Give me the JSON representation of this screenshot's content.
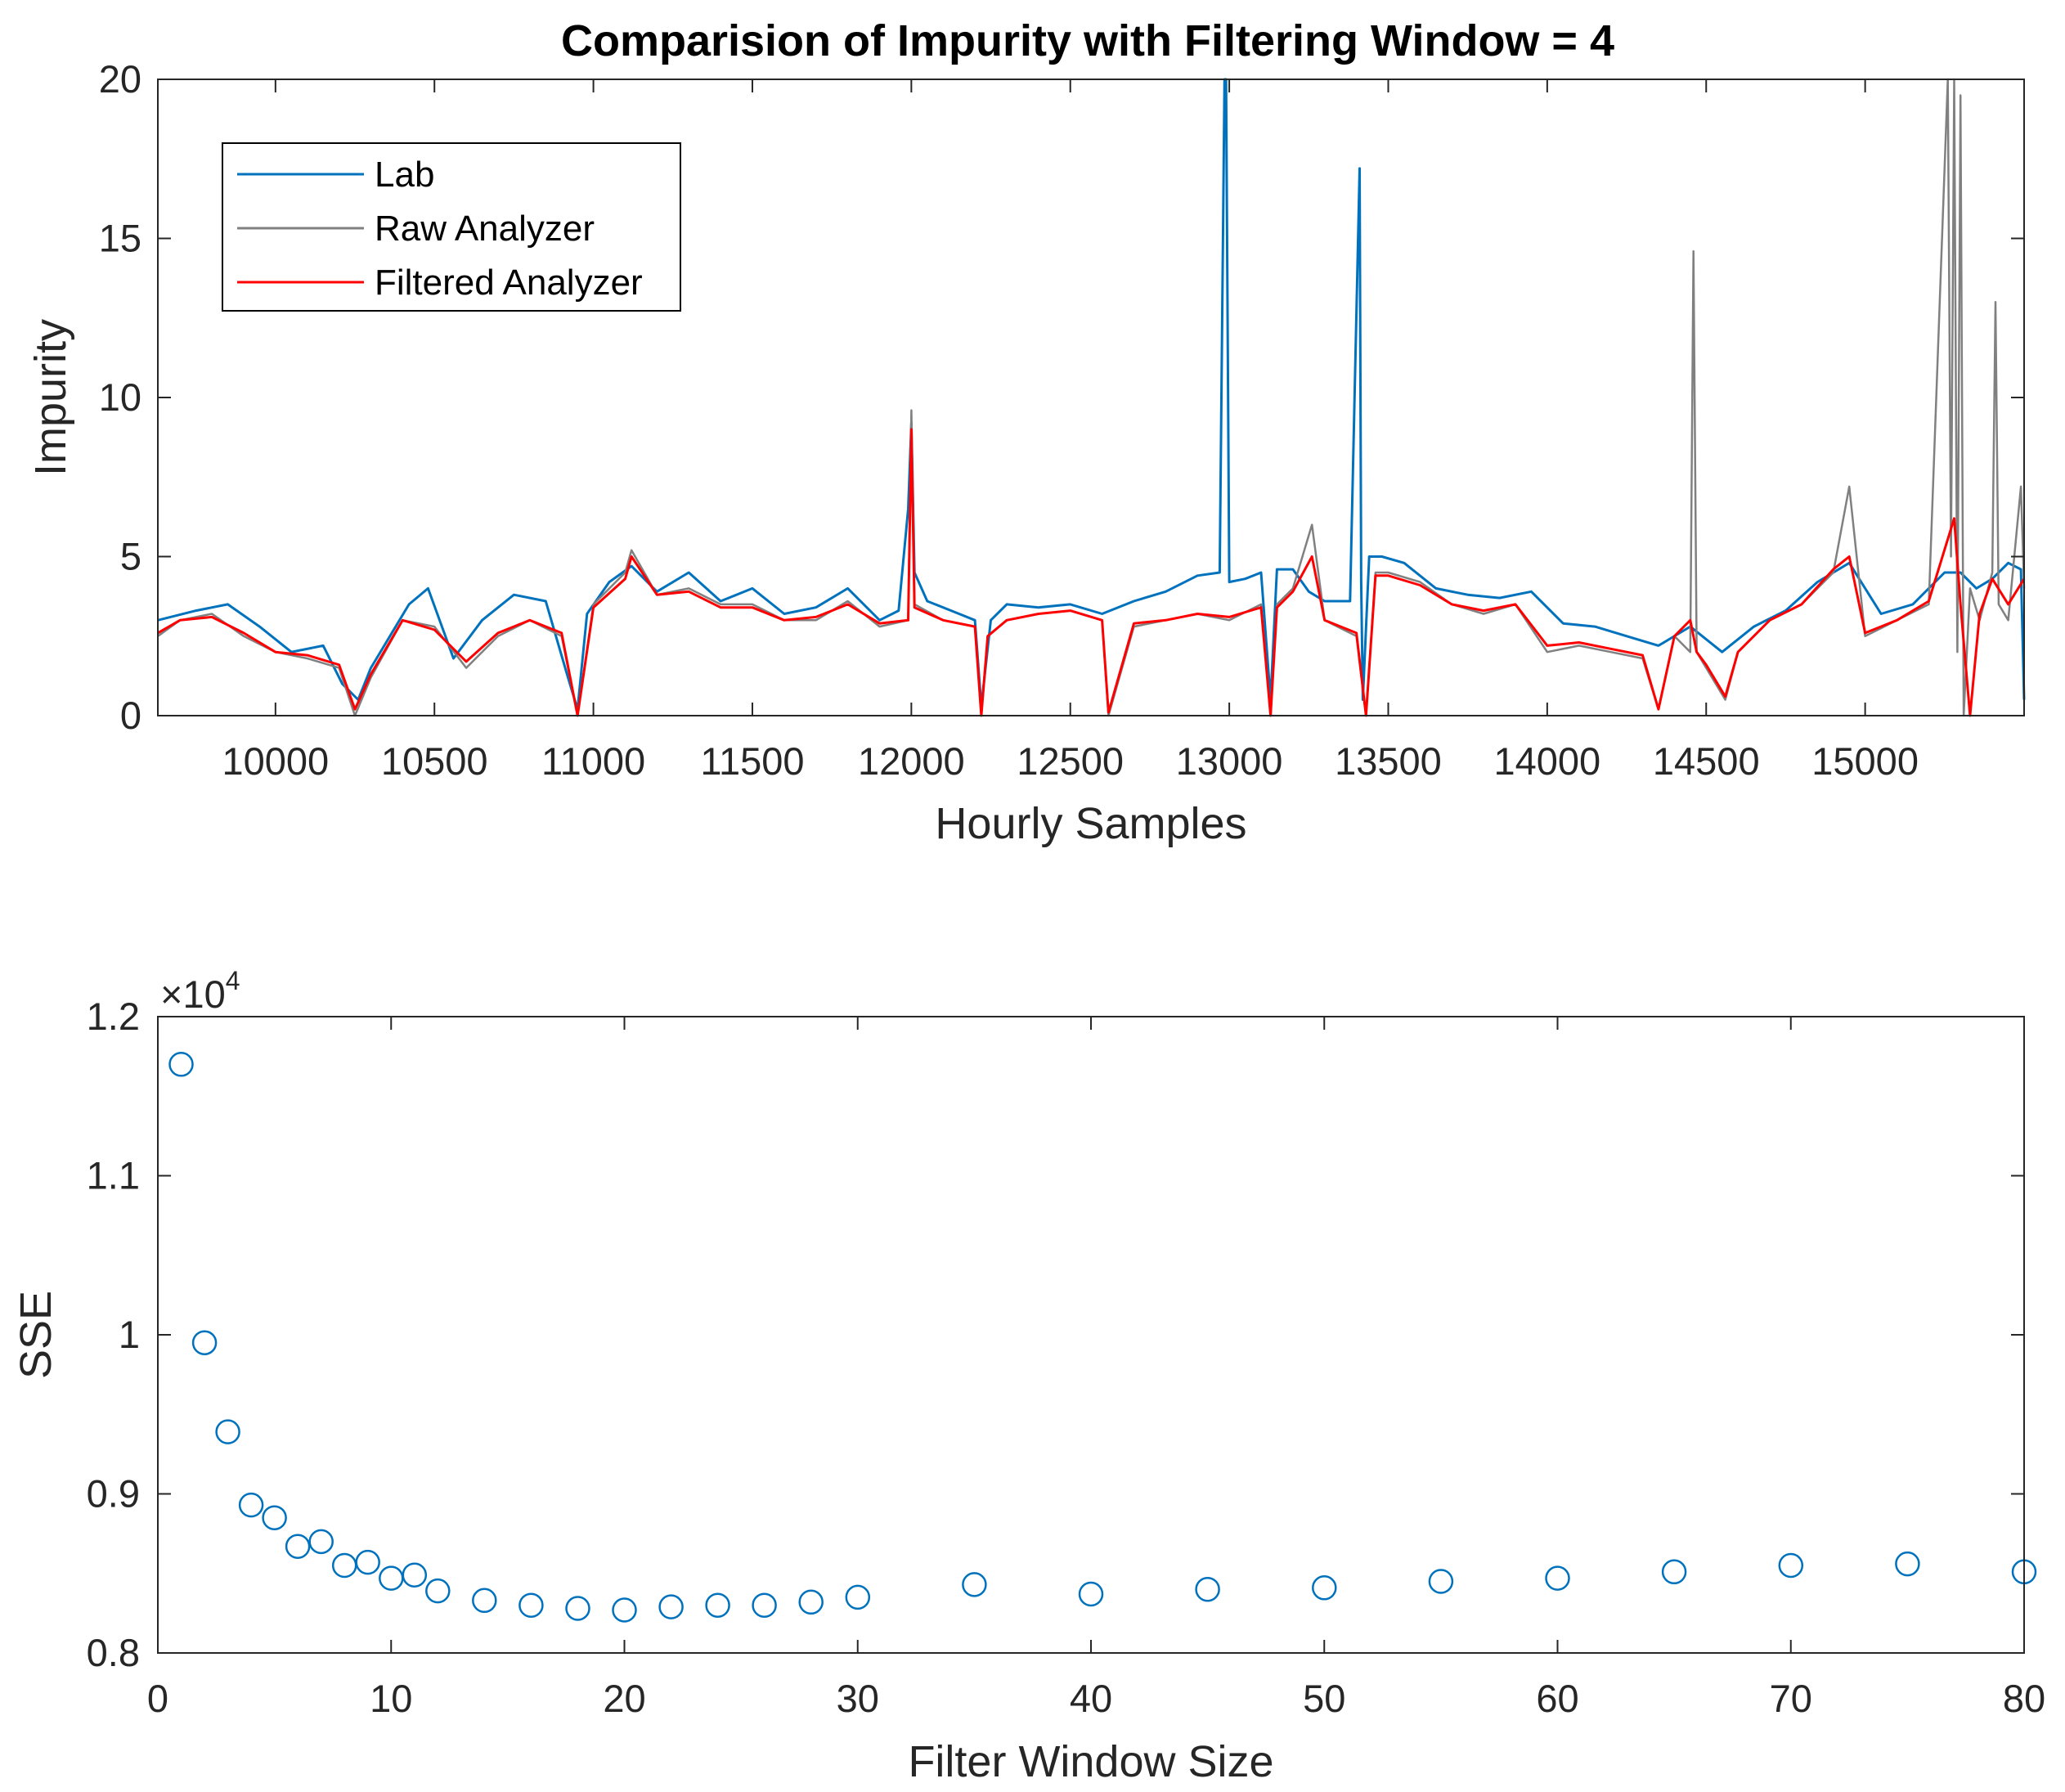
{
  "colors": {
    "lab": "#0072BD",
    "raw": "#808080",
    "filtered": "#FF0000",
    "scatter": "#0072BD",
    "axes": "#262626"
  },
  "chart_data": [
    {
      "type": "line",
      "title": "Comparision of Impurity with Filtering Window = 4",
      "xlabel": "Hourly Samples",
      "ylabel": "Impurity",
      "xlim": [
        9630,
        15500
      ],
      "ylim": [
        0,
        20
      ],
      "xticks": [
        10000,
        10500,
        11000,
        11500,
        12000,
        12500,
        13000,
        13500,
        14000,
        14500,
        15000
      ],
      "xtick_labels": [
        "10000",
        "10500",
        "11000",
        "11500",
        "12000",
        "12500",
        "13000",
        "13500",
        "14000",
        "14500",
        "15000"
      ],
      "yticks": [
        0,
        5,
        10,
        15,
        20
      ],
      "ytick_labels": [
        "0",
        "5",
        "10",
        "15",
        "20"
      ],
      "legend_position": "top-left",
      "series": [
        {
          "name": "Lab",
          "color_key": "lab",
          "x": [
            9630,
            9750,
            9850,
            9950,
            10050,
            10150,
            10210,
            10260,
            10300,
            10360,
            10420,
            10480,
            10560,
            10650,
            10750,
            10850,
            10920,
            10950,
            10980,
            11050,
            11120,
            11200,
            11300,
            11400,
            11500,
            11600,
            11700,
            11800,
            11900,
            11960,
            11990,
            12000,
            12010,
            12050,
            12150,
            12200,
            12220,
            12250,
            12300,
            12400,
            12500,
            12600,
            12700,
            12800,
            12900,
            12970,
            12985,
            12990,
            13000,
            13050,
            13100,
            13130,
            13150,
            13200,
            13250,
            13300,
            13380,
            13410,
            13415,
            13420,
            13440,
            13480,
            13550,
            13650,
            13750,
            13850,
            13950,
            14050,
            14150,
            14250,
            14350,
            14450,
            14550,
            14650,
            14750,
            14850,
            14950,
            15050,
            15150,
            15250,
            15300,
            15350,
            15400,
            15450,
            15490,
            15500
          ],
          "y": [
            3.0,
            3.3,
            3.5,
            2.8,
            2.0,
            2.2,
            1.0,
            0.5,
            1.5,
            2.5,
            3.5,
            4.0,
            1.8,
            3.0,
            3.8,
            3.6,
            1.2,
            0.2,
            3.2,
            4.2,
            4.7,
            3.9,
            4.5,
            3.6,
            4.0,
            3.2,
            3.4,
            4.0,
            3.0,
            3.3,
            6.5,
            9.2,
            4.5,
            3.6,
            3.2,
            3.0,
            0.3,
            3.0,
            3.5,
            3.4,
            3.5,
            3.2,
            3.6,
            3.9,
            4.4,
            4.5,
            20.0,
            20.0,
            4.2,
            4.3,
            4.5,
            0.5,
            4.6,
            4.6,
            3.9,
            3.6,
            3.6,
            17.2,
            4.2,
            0.5,
            5.0,
            5.0,
            4.8,
            4.0,
            3.8,
            3.7,
            3.9,
            2.9,
            2.8,
            2.5,
            2.2,
            2.8,
            2.0,
            2.8,
            3.3,
            4.2,
            4.8,
            3.2,
            3.5,
            4.5,
            4.5,
            4.0,
            4.3,
            4.8,
            4.6,
            0.5
          ]
        },
        {
          "name": "Raw Analyzer",
          "color_key": "raw",
          "x": [
            9630,
            9700,
            9800,
            9900,
            10000,
            10100,
            10200,
            10250,
            10300,
            10400,
            10500,
            10600,
            10700,
            10800,
            10900,
            10950,
            11000,
            11100,
            11120,
            11200,
            11300,
            11400,
            11500,
            11600,
            11700,
            11800,
            11900,
            11990,
            12000,
            12010,
            12100,
            12200,
            12220,
            12240,
            12300,
            12400,
            12500,
            12600,
            12620,
            12700,
            12800,
            12900,
            13000,
            13100,
            13130,
            13150,
            13200,
            13260,
            13300,
            13400,
            13430,
            13460,
            13500,
            13600,
            13700,
            13800,
            13900,
            14000,
            14100,
            14200,
            14300,
            14350,
            14400,
            14450,
            14460,
            14470,
            14500,
            14560,
            14600,
            14700,
            14800,
            14900,
            14950,
            15000,
            15100,
            15200,
            15260,
            15270,
            15280,
            15290,
            15300,
            15310,
            15330,
            15360,
            15400,
            15410,
            15420,
            15450,
            15490,
            15500
          ],
          "y": [
            2.5,
            3.0,
            3.2,
            2.5,
            2.0,
            1.8,
            1.5,
            0.0,
            1.2,
            3.0,
            2.8,
            1.5,
            2.5,
            3.0,
            2.5,
            0.0,
            3.5,
            4.5,
            5.2,
            3.8,
            4.0,
            3.5,
            3.5,
            3.0,
            3.0,
            3.6,
            2.8,
            3.0,
            9.6,
            3.5,
            3.0,
            2.8,
            0.0,
            2.5,
            3.0,
            3.2,
            3.3,
            3.0,
            0.0,
            2.8,
            3.0,
            3.2,
            3.0,
            3.5,
            0.0,
            3.5,
            4.0,
            6.0,
            3.0,
            2.5,
            0.0,
            4.5,
            4.5,
            4.2,
            3.5,
            3.2,
            3.5,
            2.0,
            2.2,
            2.0,
            1.8,
            0.2,
            2.5,
            2.0,
            14.6,
            2.0,
            1.5,
            0.5,
            2.0,
            3.0,
            3.5,
            4.5,
            7.2,
            2.5,
            3.0,
            3.5,
            20.0,
            5.0,
            20.0,
            2.0,
            19.5,
            0.0,
            4.0,
            3.0,
            4.5,
            13.0,
            3.5,
            3.0,
            7.2,
            4.0
          ]
        },
        {
          "name": "Filtered Analyzer",
          "color_key": "filtered",
          "x": [
            9630,
            9700,
            9800,
            9900,
            10000,
            10100,
            10200,
            10250,
            10300,
            10400,
            10500,
            10600,
            10700,
            10800,
            10900,
            10950,
            11000,
            11100,
            11120,
            11200,
            11300,
            11400,
            11500,
            11600,
            11700,
            11800,
            11900,
            11990,
            12000,
            12010,
            12100,
            12200,
            12220,
            12240,
            12300,
            12400,
            12500,
            12600,
            12620,
            12700,
            12800,
            12900,
            13000,
            13100,
            13130,
            13150,
            13200,
            13260,
            13300,
            13400,
            13430,
            13460,
            13500,
            13600,
            13700,
            13800,
            13900,
            14000,
            14100,
            14200,
            14300,
            14350,
            14400,
            14450,
            14470,
            14500,
            14560,
            14600,
            14700,
            14800,
            14900,
            14950,
            15000,
            15100,
            15200,
            15280,
            15300,
            15330,
            15360,
            15400,
            15450,
            15500
          ],
          "y": [
            2.6,
            3.0,
            3.1,
            2.6,
            2.0,
            1.9,
            1.6,
            0.2,
            1.3,
            3.0,
            2.7,
            1.7,
            2.6,
            3.0,
            2.6,
            0.0,
            3.4,
            4.3,
            5.0,
            3.8,
            3.9,
            3.4,
            3.4,
            3.0,
            3.1,
            3.5,
            2.9,
            3.0,
            9.0,
            3.4,
            3.0,
            2.8,
            0.0,
            2.5,
            3.0,
            3.2,
            3.3,
            3.0,
            0.1,
            2.9,
            3.0,
            3.2,
            3.1,
            3.4,
            0.0,
            3.4,
            3.9,
            5.0,
            3.0,
            2.6,
            0.0,
            4.4,
            4.4,
            4.1,
            3.5,
            3.3,
            3.5,
            2.2,
            2.3,
            2.1,
            1.9,
            0.2,
            2.5,
            3.0,
            2.0,
            1.6,
            0.6,
            2.0,
            3.0,
            3.5,
            4.6,
            5.0,
            2.6,
            3.0,
            3.6,
            6.2,
            3.5,
            0.0,
            3.2,
            4.3,
            3.5,
            4.3
          ]
        }
      ]
    },
    {
      "type": "scatter",
      "title": "",
      "xlabel": "Filter Window Size",
      "ylabel": "SSE",
      "exponent_label": "×10",
      "exponent_power": "4",
      "xlim": [
        0,
        80
      ],
      "ylim": [
        0.8,
        1.2
      ],
      "xticks": [
        0,
        10,
        20,
        30,
        40,
        50,
        60,
        70,
        80
      ],
      "xtick_labels": [
        "0",
        "10",
        "20",
        "30",
        "40",
        "50",
        "60",
        "70",
        "80"
      ],
      "yticks": [
        0.8,
        0.9,
        1.0,
        1.1,
        1.2
      ],
      "ytick_labels": [
        "0.8",
        "0.9",
        "1",
        "1.1",
        "1.2"
      ],
      "series": [
        {
          "name": "SSE",
          "color_key": "scatter",
          "x": [
            1,
            2,
            3,
            4,
            5,
            6,
            7,
            8,
            9,
            10,
            11,
            12,
            14,
            16,
            18,
            20,
            22,
            24,
            26,
            28,
            30,
            35,
            40,
            45,
            50,
            55,
            60,
            65,
            70,
            75,
            80
          ],
          "y": [
            1.17,
            0.995,
            0.939,
            0.893,
            0.885,
            0.867,
            0.87,
            0.855,
            0.857,
            0.847,
            0.849,
            0.839,
            0.833,
            0.83,
            0.828,
            0.827,
            0.829,
            0.83,
            0.83,
            0.832,
            0.835,
            0.843,
            0.837,
            0.84,
            0.841,
            0.845,
            0.847,
            0.851,
            0.855,
            0.856,
            0.851
          ]
        }
      ]
    }
  ]
}
